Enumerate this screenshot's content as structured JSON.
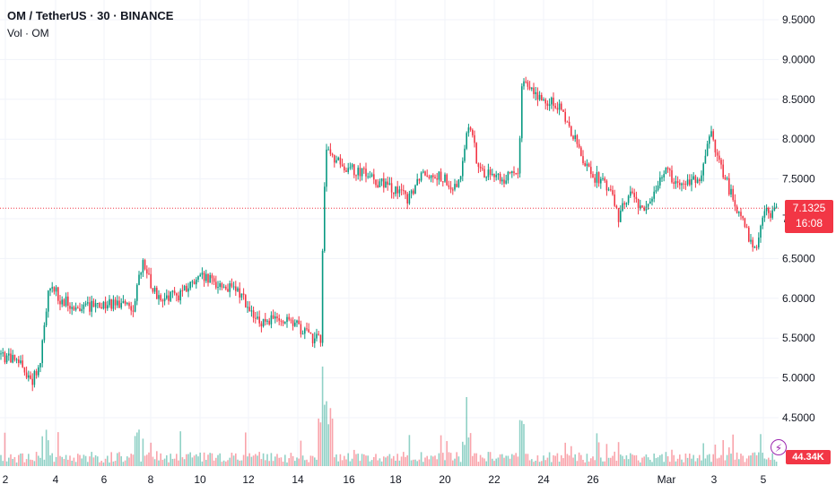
{
  "header": {
    "title": "OM / TetherUS · 30 · BINANCE",
    "volume_label": "Vol · OM"
  },
  "price_axis": {
    "ticks": [
      "9.5000",
      "9.0000",
      "8.5000",
      "8.0000",
      "7.5000",
      "7.0000",
      "6.5000",
      "6.0000",
      "5.5000",
      "5.0000",
      "4.5000"
    ]
  },
  "last_price": {
    "value": "7.1325",
    "countdown": "16:08"
  },
  "volume_readout": "44.34K",
  "colors": {
    "up": "#089981",
    "down": "#f23645",
    "grid": "#f0f3fa",
    "text": "#131722"
  },
  "icons": {
    "alert": "lightning-bolt-icon"
  },
  "chart_data": {
    "type": "candlestick",
    "title": "OM / TetherUS · 30 · BINANCE",
    "ylim": [
      4.3,
      9.75
    ],
    "xlabels": [
      "2",
      "4",
      "6",
      "8",
      "10",
      "12",
      "14",
      "16",
      "18",
      "20",
      "22",
      "24",
      "26",
      "Mar",
      "3",
      "5"
    ],
    "last_price": 7.1325,
    "volume_last": "44.34K",
    "price_path": [
      [
        0,
        5.3
      ],
      [
        25,
        5.15
      ],
      [
        35,
        4.95
      ],
      [
        45,
        5.2
      ],
      [
        55,
        6.2
      ],
      [
        70,
        5.95
      ],
      [
        100,
        5.9
      ],
      [
        130,
        5.95
      ],
      [
        150,
        5.9
      ],
      [
        158,
        6.45
      ],
      [
        175,
        6.0
      ],
      [
        200,
        6.05
      ],
      [
        225,
        6.25
      ],
      [
        250,
        6.15
      ],
      [
        270,
        6.05
      ],
      [
        285,
        5.7
      ],
      [
        310,
        5.75
      ],
      [
        330,
        5.65
      ],
      [
        350,
        5.5
      ],
      [
        358,
        5.5
      ],
      [
        360,
        6.8
      ],
      [
        363,
        7.9
      ],
      [
        368,
        7.75
      ],
      [
        400,
        7.6
      ],
      [
        430,
        7.4
      ],
      [
        455,
        7.25
      ],
      [
        470,
        7.6
      ],
      [
        490,
        7.55
      ],
      [
        510,
        7.35
      ],
      [
        522,
        8.2
      ],
      [
        535,
        7.6
      ],
      [
        560,
        7.5
      ],
      [
        578,
        7.6
      ],
      [
        582,
        8.8
      ],
      [
        600,
        8.5
      ],
      [
        620,
        8.45
      ],
      [
        640,
        8.0
      ],
      [
        660,
        7.55
      ],
      [
        680,
        7.4
      ],
      [
        690,
        7.0
      ],
      [
        700,
        7.3
      ],
      [
        720,
        7.1
      ],
      [
        740,
        7.6
      ],
      [
        760,
        7.45
      ],
      [
        780,
        7.5
      ],
      [
        793,
        8.05
      ],
      [
        810,
        7.45
      ],
      [
        830,
        6.9
      ],
      [
        842,
        6.6
      ],
      [
        850,
        7.05
      ],
      [
        870,
        7.13
      ]
    ]
  }
}
